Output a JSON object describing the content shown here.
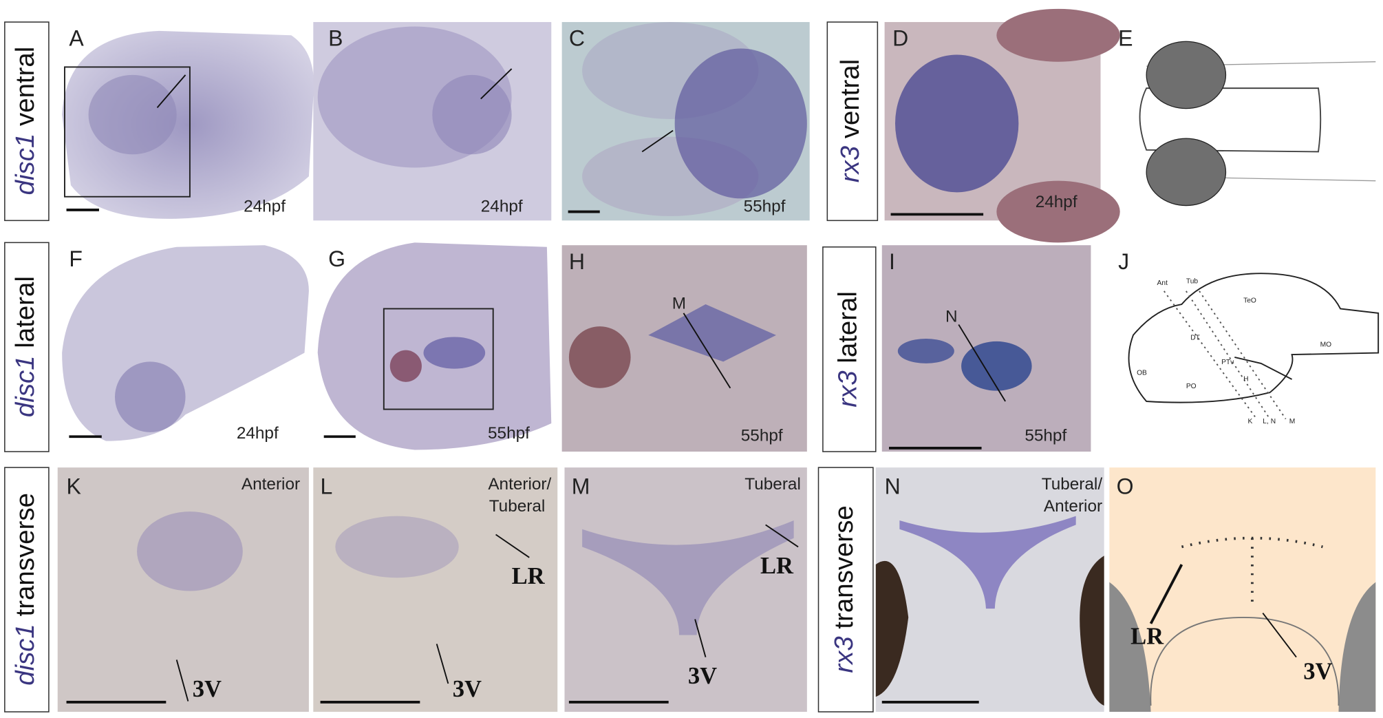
{
  "row_labels": [
    {
      "gene": "disc1",
      "view": "ventral"
    },
    {
      "gene": "rx3",
      "view": "ventral"
    },
    {
      "gene": "disc1",
      "view": "lateral"
    },
    {
      "gene": "rx3",
      "view": "lateral"
    },
    {
      "gene": "disc1",
      "view": "transverse"
    },
    {
      "gene": "rx3",
      "view": "transverse"
    }
  ],
  "panels": [
    {
      "letter": "A",
      "stage": "24hpf"
    },
    {
      "letter": "B",
      "stage": "24hpf"
    },
    {
      "letter": "C",
      "stage": "55hpf"
    },
    {
      "letter": "D",
      "stage": "24hpf"
    },
    {
      "letter": "E"
    },
    {
      "letter": "F",
      "stage": "24hpf"
    },
    {
      "letter": "G",
      "stage": "55hpf"
    },
    {
      "letter": "H",
      "stage": "55hpf",
      "notes": [
        "M"
      ]
    },
    {
      "letter": "I",
      "stage": "55hpf",
      "notes": [
        "N"
      ]
    },
    {
      "letter": "J",
      "labels": [
        "Ant",
        "Tub",
        "TeO",
        "DT",
        "MO",
        "PTv",
        "OB",
        "H",
        "PO",
        "K",
        "L, N",
        "M"
      ]
    },
    {
      "letter": "K",
      "notes": [
        "Anterior",
        "3V"
      ]
    },
    {
      "letter": "L",
      "notes": [
        "Anterior/",
        "Tuberal",
        "LR",
        "3V"
      ]
    },
    {
      "letter": "M",
      "notes": [
        "Tuberal",
        "LR",
        "3V"
      ]
    },
    {
      "letter": "N",
      "notes": [
        "Tuberal/",
        "Anterior"
      ]
    },
    {
      "letter": "O",
      "notes": [
        "LR",
        "3V"
      ]
    }
  ]
}
